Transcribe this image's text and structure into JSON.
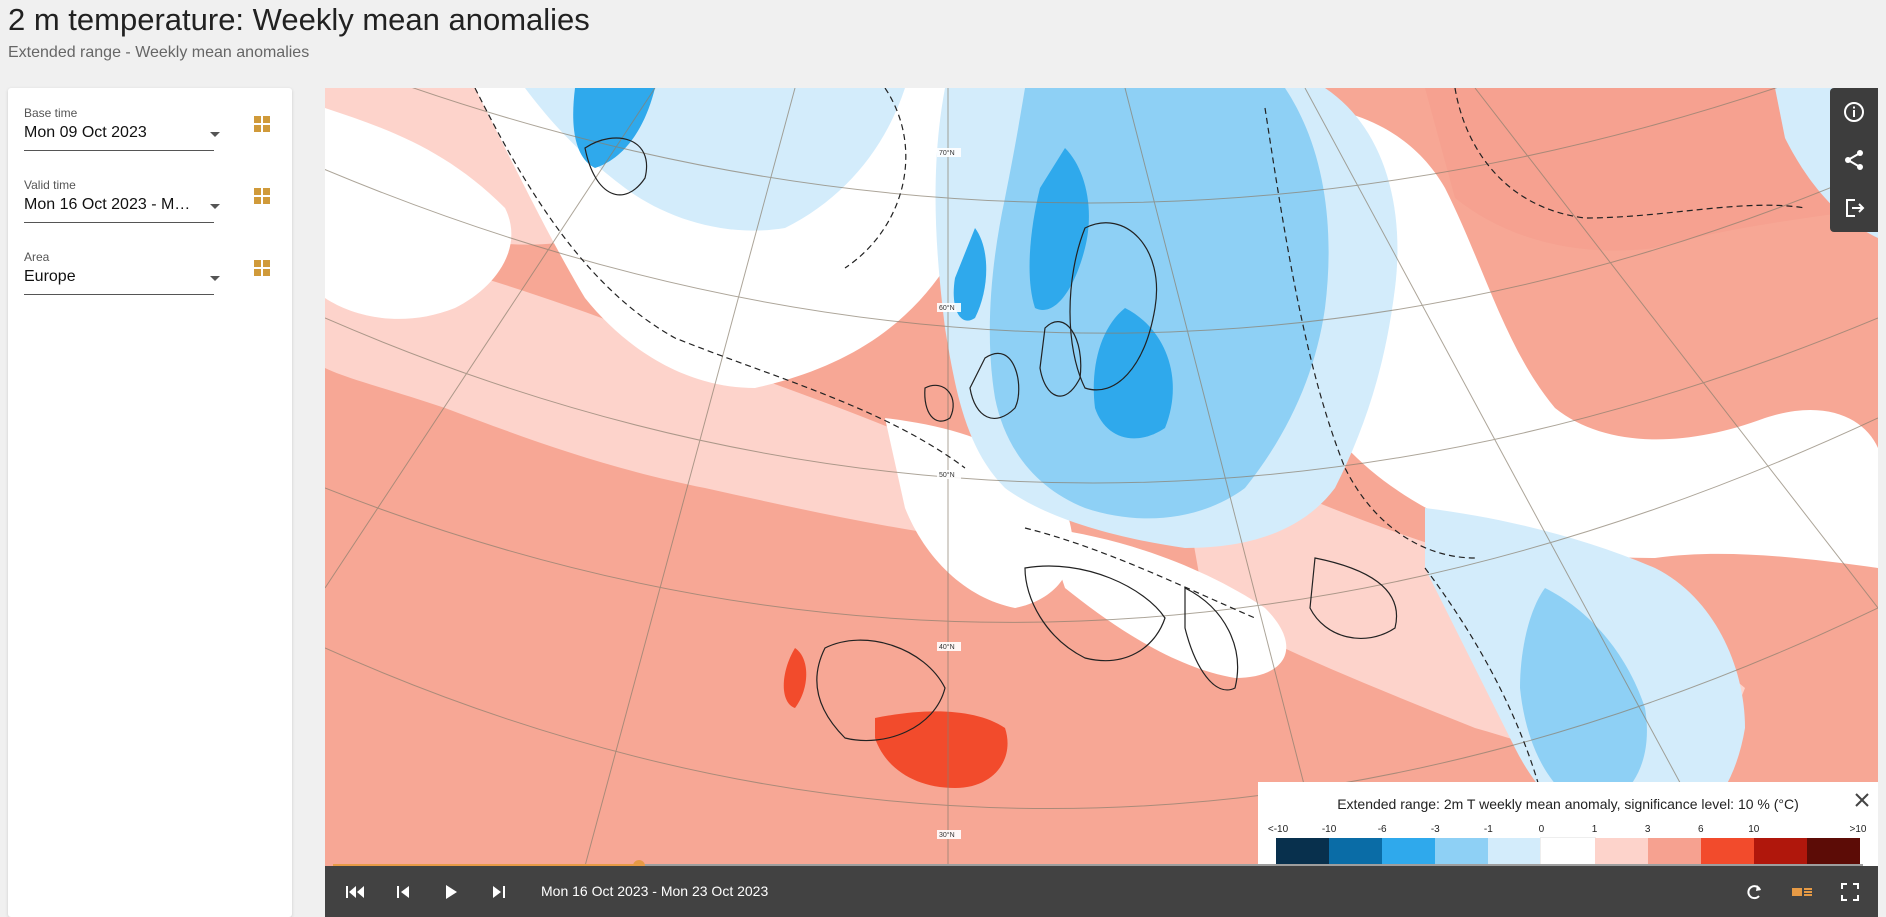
{
  "header": {
    "title": "2 m temperature: Weekly mean anomalies",
    "subtitle": "Extended range - Weekly mean anomalies"
  },
  "controls_panel": {
    "fields": [
      {
        "label": "Base time",
        "value": "Mon 09 Oct 2023"
      },
      {
        "label": "Valid time",
        "value": "Mon 16 Oct 2023 - Mo..."
      },
      {
        "label": "Area",
        "value": "Europe"
      }
    ]
  },
  "map": {
    "latitude_labels": [
      "70°N",
      "60°N",
      "50°N",
      "40°N",
      "30°N"
    ],
    "side_tools": [
      "info-icon",
      "share-icon",
      "export-icon"
    ],
    "legend": {
      "title": "Extended range: 2m T weekly mean anomaly, significance level: 10 % (°C)",
      "ticks": [
        "<-10",
        "-10",
        "-6",
        "-3",
        "-1",
        "0",
        "1",
        "3",
        "6",
        "10",
        ">10"
      ],
      "colors": [
        "#08304d",
        "#0a6ca6",
        "#2fa9ec",
        "#8ed0f5",
        "#d3ecfb",
        "#ffffff",
        "#fdd3cb",
        "#f6a190",
        "#f24b2c",
        "#b0170c",
        "#5c0c06"
      ]
    },
    "player": {
      "range_label": "Mon 16 Oct 2023 - Mon 23 Oct 2023",
      "progress": 0.2,
      "accent": "#e69a45"
    }
  }
}
